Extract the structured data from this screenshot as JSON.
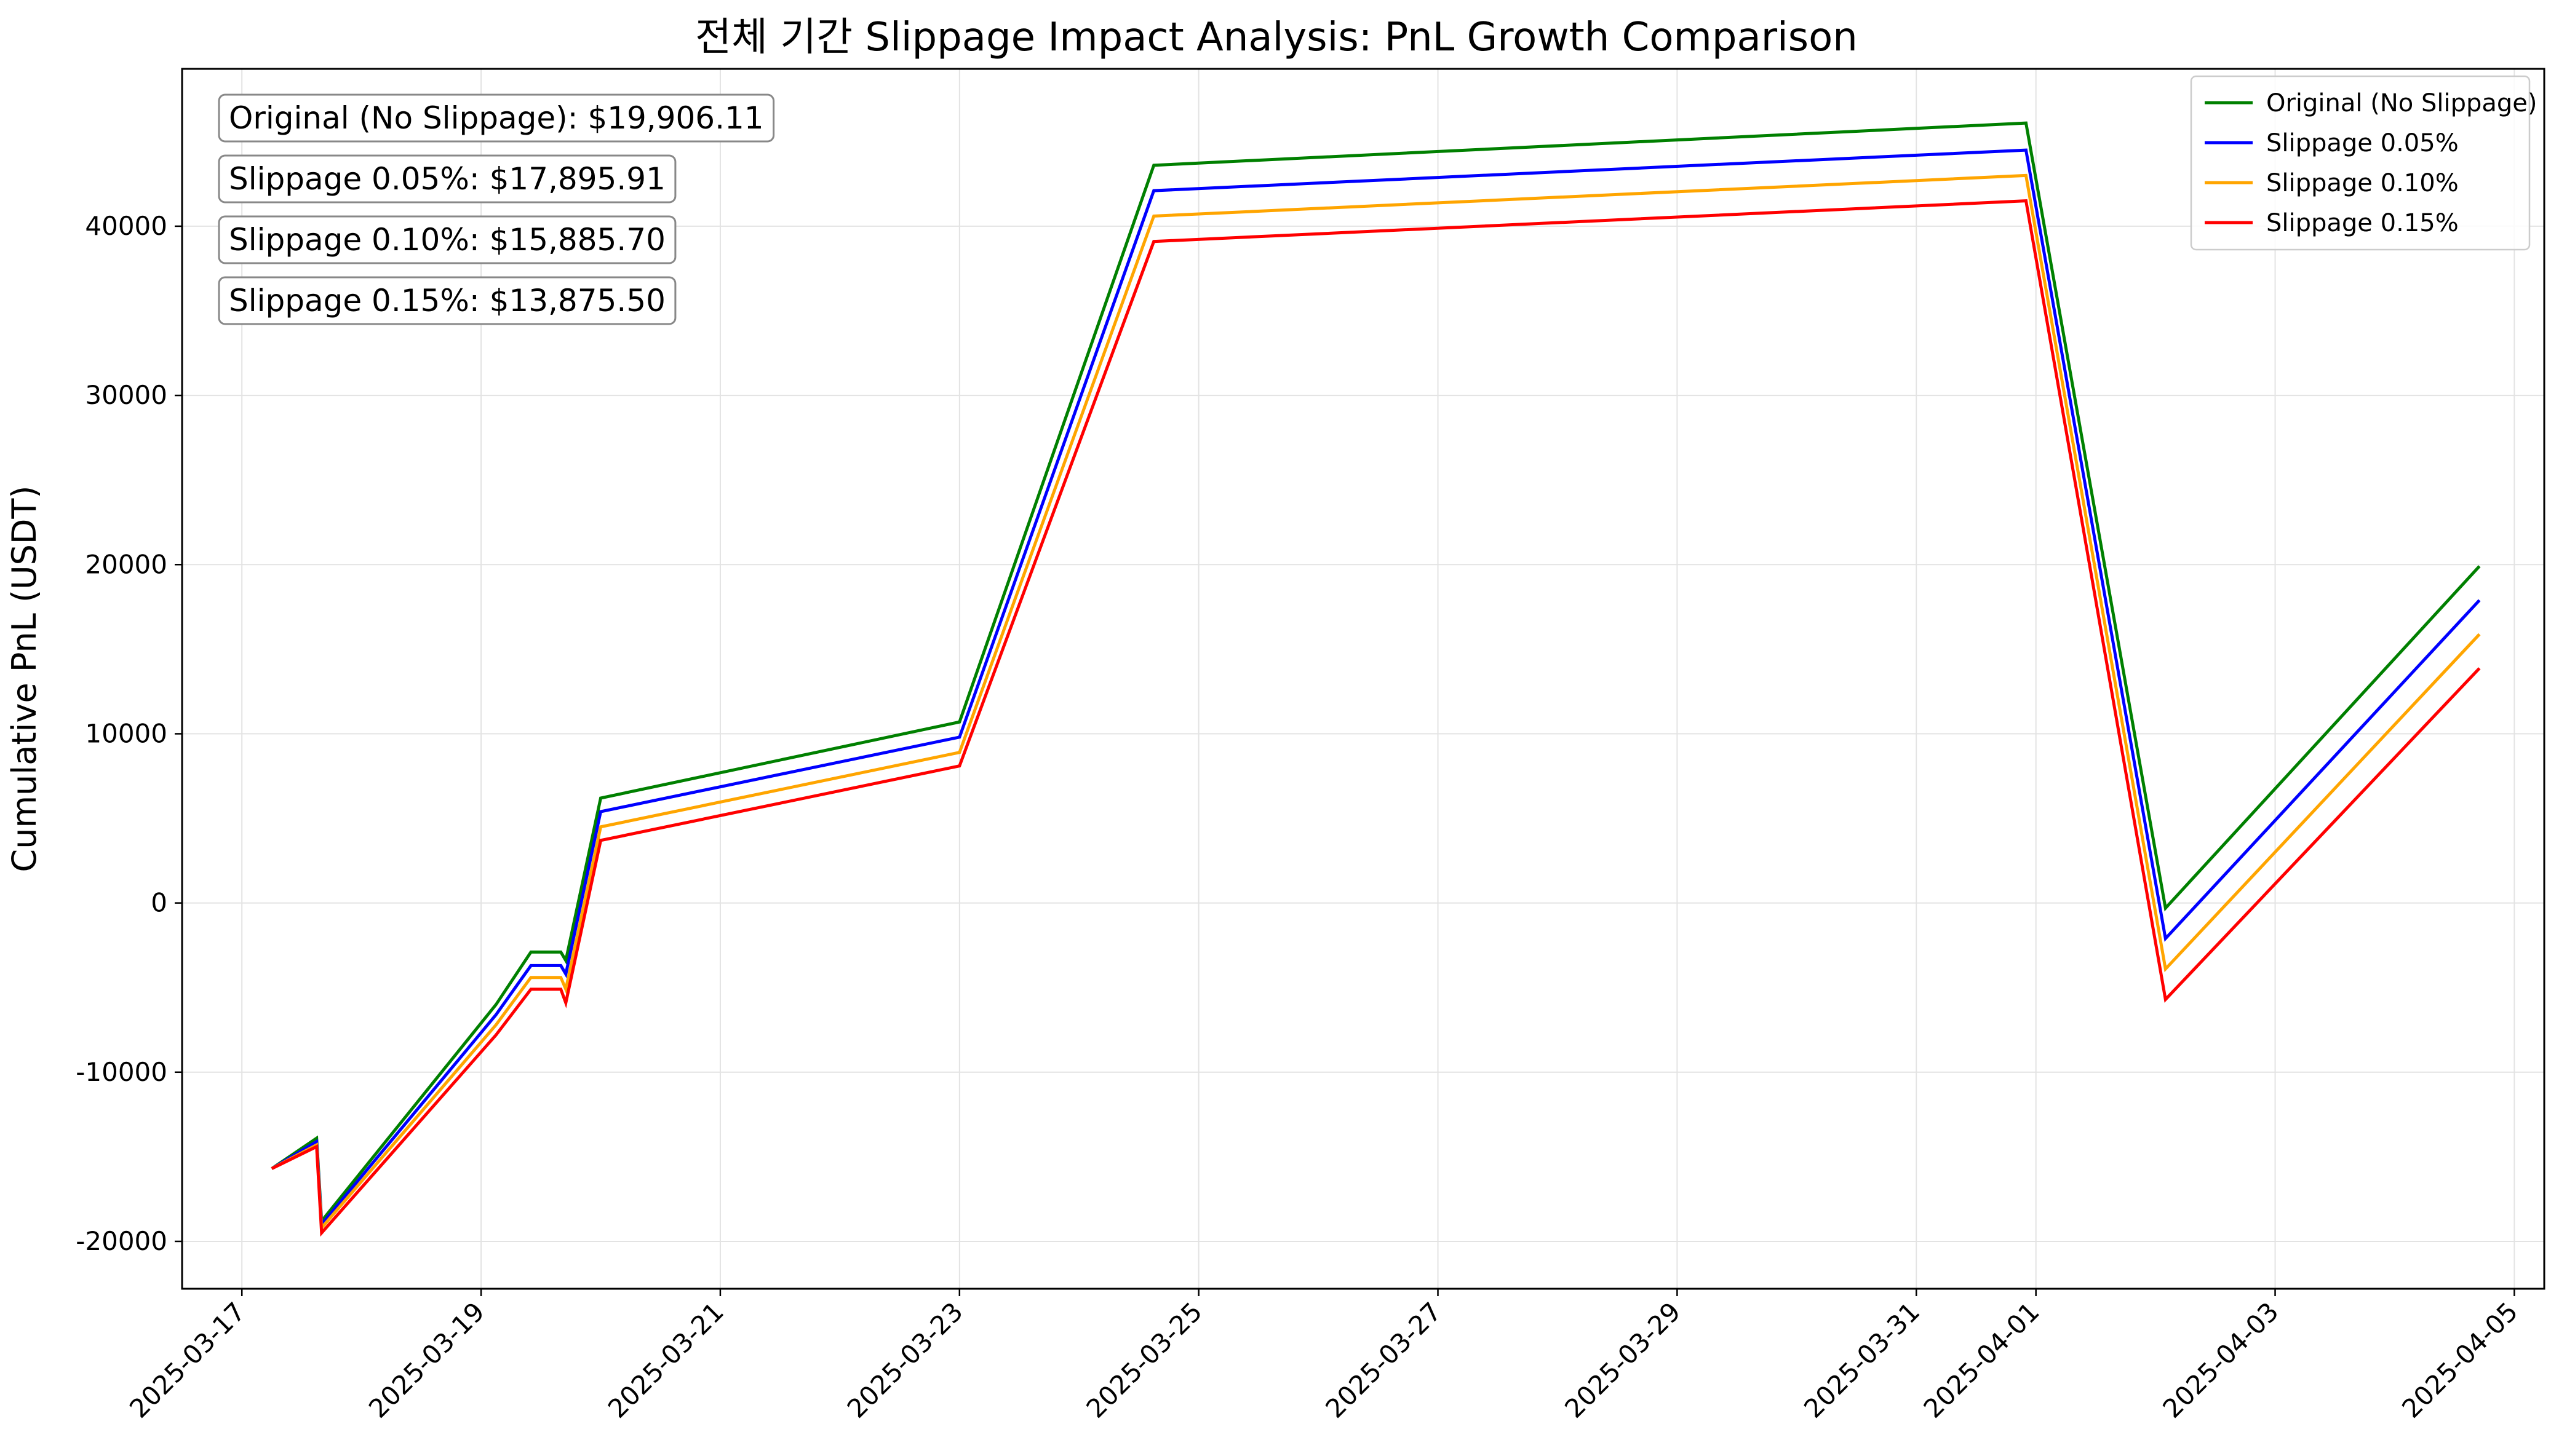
{
  "chart_data": {
    "type": "line",
    "title": "전체 기간 Slippage Impact Analysis: PnL Growth Comparison",
    "xlabel": "",
    "ylabel": "Cumulative PnL (USDT)",
    "xlim": [
      "2025-03-16T12:00",
      "2025-04-05T06:00"
    ],
    "ylim": [
      -22800,
      49300
    ],
    "grid": true,
    "legend_position": "top-right",
    "x_ticks": [
      "2025-03-17",
      "2025-03-19",
      "2025-03-21",
      "2025-03-23",
      "2025-03-25",
      "2025-03-27",
      "2025-03-29",
      "2025-03-31",
      "2025-04-01",
      "2025-04-03",
      "2025-04-05"
    ],
    "y_ticks": [
      -20000,
      -10000,
      0,
      10000,
      20000,
      30000,
      40000
    ],
    "x": [
      "2025-03-17T06:00",
      "2025-03-17T15:00",
      "2025-03-17T16:00",
      "2025-03-19T03:00",
      "2025-03-19T10:00",
      "2025-03-19T16:00",
      "2025-03-19T17:00",
      "2025-03-20T00:00",
      "2025-03-23T00:00",
      "2025-03-24T15:00",
      "2025-03-31T22:00",
      "2025-04-02T02:00",
      "2025-04-04T17:00"
    ],
    "series": [
      {
        "name": "Original (No Slippage)",
        "color": "#008000",
        "values": [
          -15700,
          -13900,
          -18800,
          -6000,
          -2900,
          -2900,
          -3400,
          6200,
          10700,
          43600,
          46100,
          -300,
          19906.11
        ]
      },
      {
        "name": "Slippage 0.05%",
        "color": "#0000ff",
        "values": [
          -15700,
          -14100,
          -19000,
          -6600,
          -3700,
          -3700,
          -4200,
          5400,
          9800,
          42100,
          44500,
          -2100,
          17895.91
        ]
      },
      {
        "name": "Slippage 0.10%",
        "color": "#ffa500",
        "values": [
          -15700,
          -14300,
          -19200,
          -7200,
          -4400,
          -4400,
          -5100,
          4500,
          8900,
          40600,
          43000,
          -3900,
          15885.7
        ]
      },
      {
        "name": "Slippage 0.15%",
        "color": "#ff0000",
        "values": [
          -15700,
          -14400,
          -19500,
          -7800,
          -5100,
          -5100,
          -5900,
          3700,
          8100,
          39100,
          41500,
          -5700,
          13875.5
        ]
      }
    ],
    "annotations": [
      "Original (No Slippage): $19,906.11",
      "Slippage 0.05%: $17,895.91",
      "Slippage 0.10%: $15,885.70",
      "Slippage 0.15%: $13,875.50"
    ]
  }
}
